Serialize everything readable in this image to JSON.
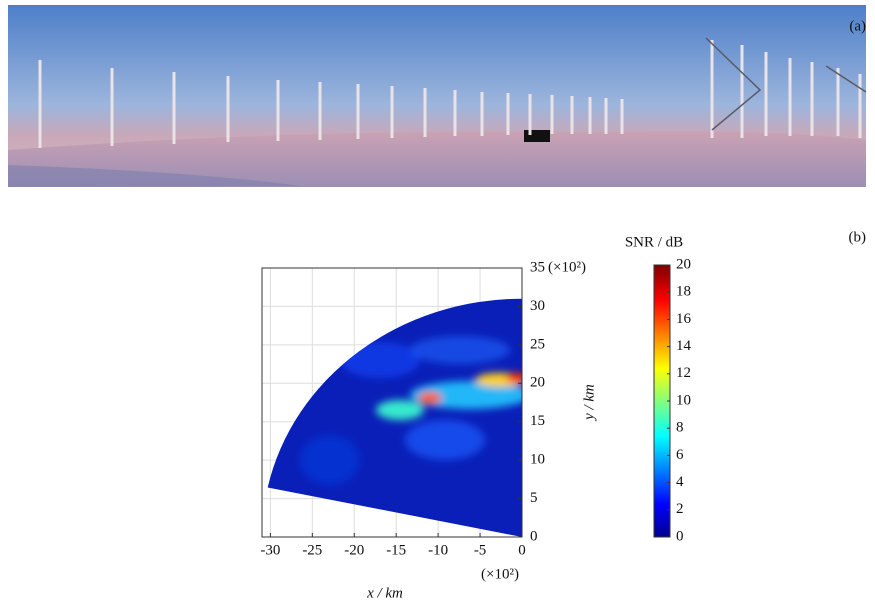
{
  "panel_a": {
    "label": "(a)"
  },
  "panel_b": {
    "label": "(b)"
  },
  "chart_data": {
    "type": "heatmap",
    "xlabel": "x / km",
    "ylabel": "y / km",
    "x_multiplier": "(×10²)",
    "y_multiplier": "(×10²)",
    "xlim": [
      -31,
      0
    ],
    "ylim": [
      0,
      35
    ],
    "xticks": [
      -30,
      -25,
      -20,
      -15,
      -10,
      -5,
      0
    ],
    "yticks": [
      0,
      5,
      10,
      15,
      20,
      25,
      30,
      35
    ],
    "grid": true,
    "colorbar": {
      "title": "SNR / dB",
      "lim": [
        0,
        20
      ],
      "ticks": [
        0,
        2,
        4,
        6,
        8,
        10,
        12,
        14,
        16,
        18,
        20
      ]
    }
  }
}
